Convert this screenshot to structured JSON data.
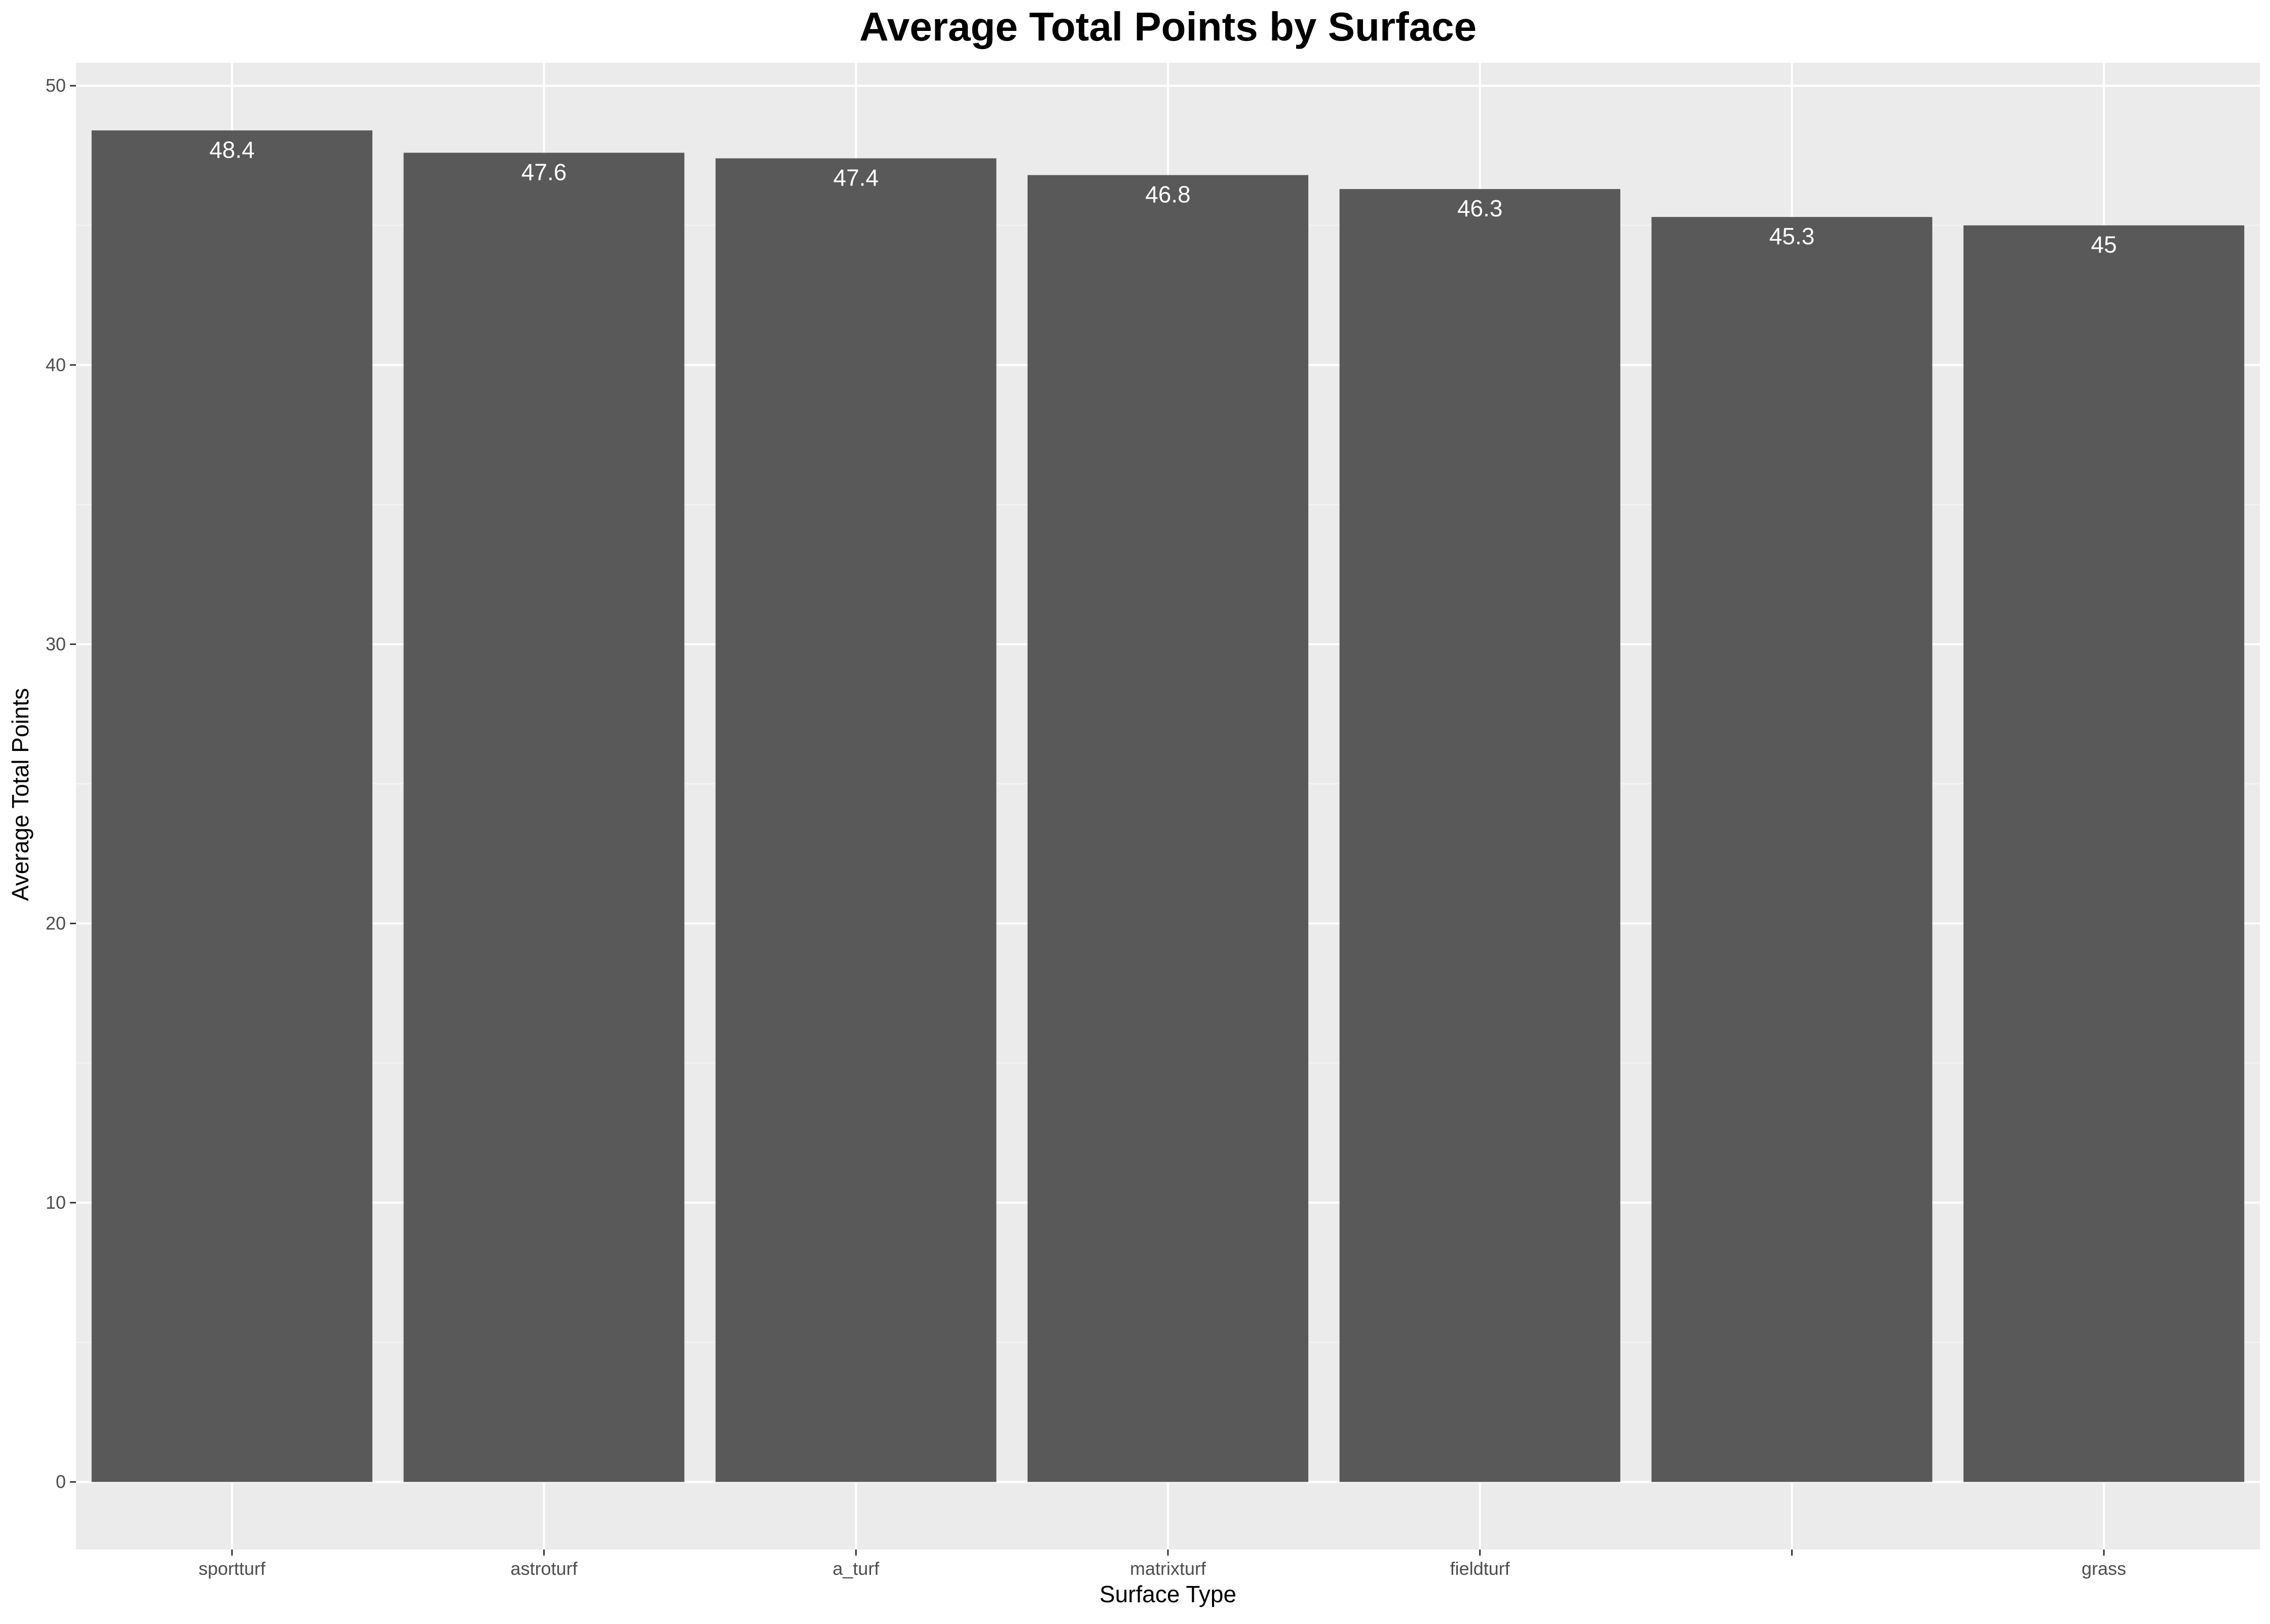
{
  "chart_data": {
    "type": "bar",
    "title": "Average Total Points by Surface",
    "xlabel": "Surface Type",
    "ylabel": "Average Total Points",
    "categories": [
      "sportturf",
      "astroturf",
      "a_turf",
      "matrixturf",
      "fieldturf",
      "",
      "grass"
    ],
    "values": [
      48.4,
      47.6,
      47.4,
      46.8,
      46.3,
      45.3,
      45
    ],
    "value_labels": [
      "48.4",
      "47.6",
      "47.4",
      "46.8",
      "46.3",
      "45.3",
      "45"
    ],
    "y_ticks": [
      0,
      10,
      20,
      30,
      40,
      50
    ],
    "ylim": [
      -2.42,
      50.82
    ],
    "grid": true,
    "colors": {
      "bar": "#595959",
      "panel_background": "#ebebeb",
      "grid_major": "#ffffff",
      "grid_minor": "#f5f5f5",
      "tick_mark": "#333333"
    }
  }
}
